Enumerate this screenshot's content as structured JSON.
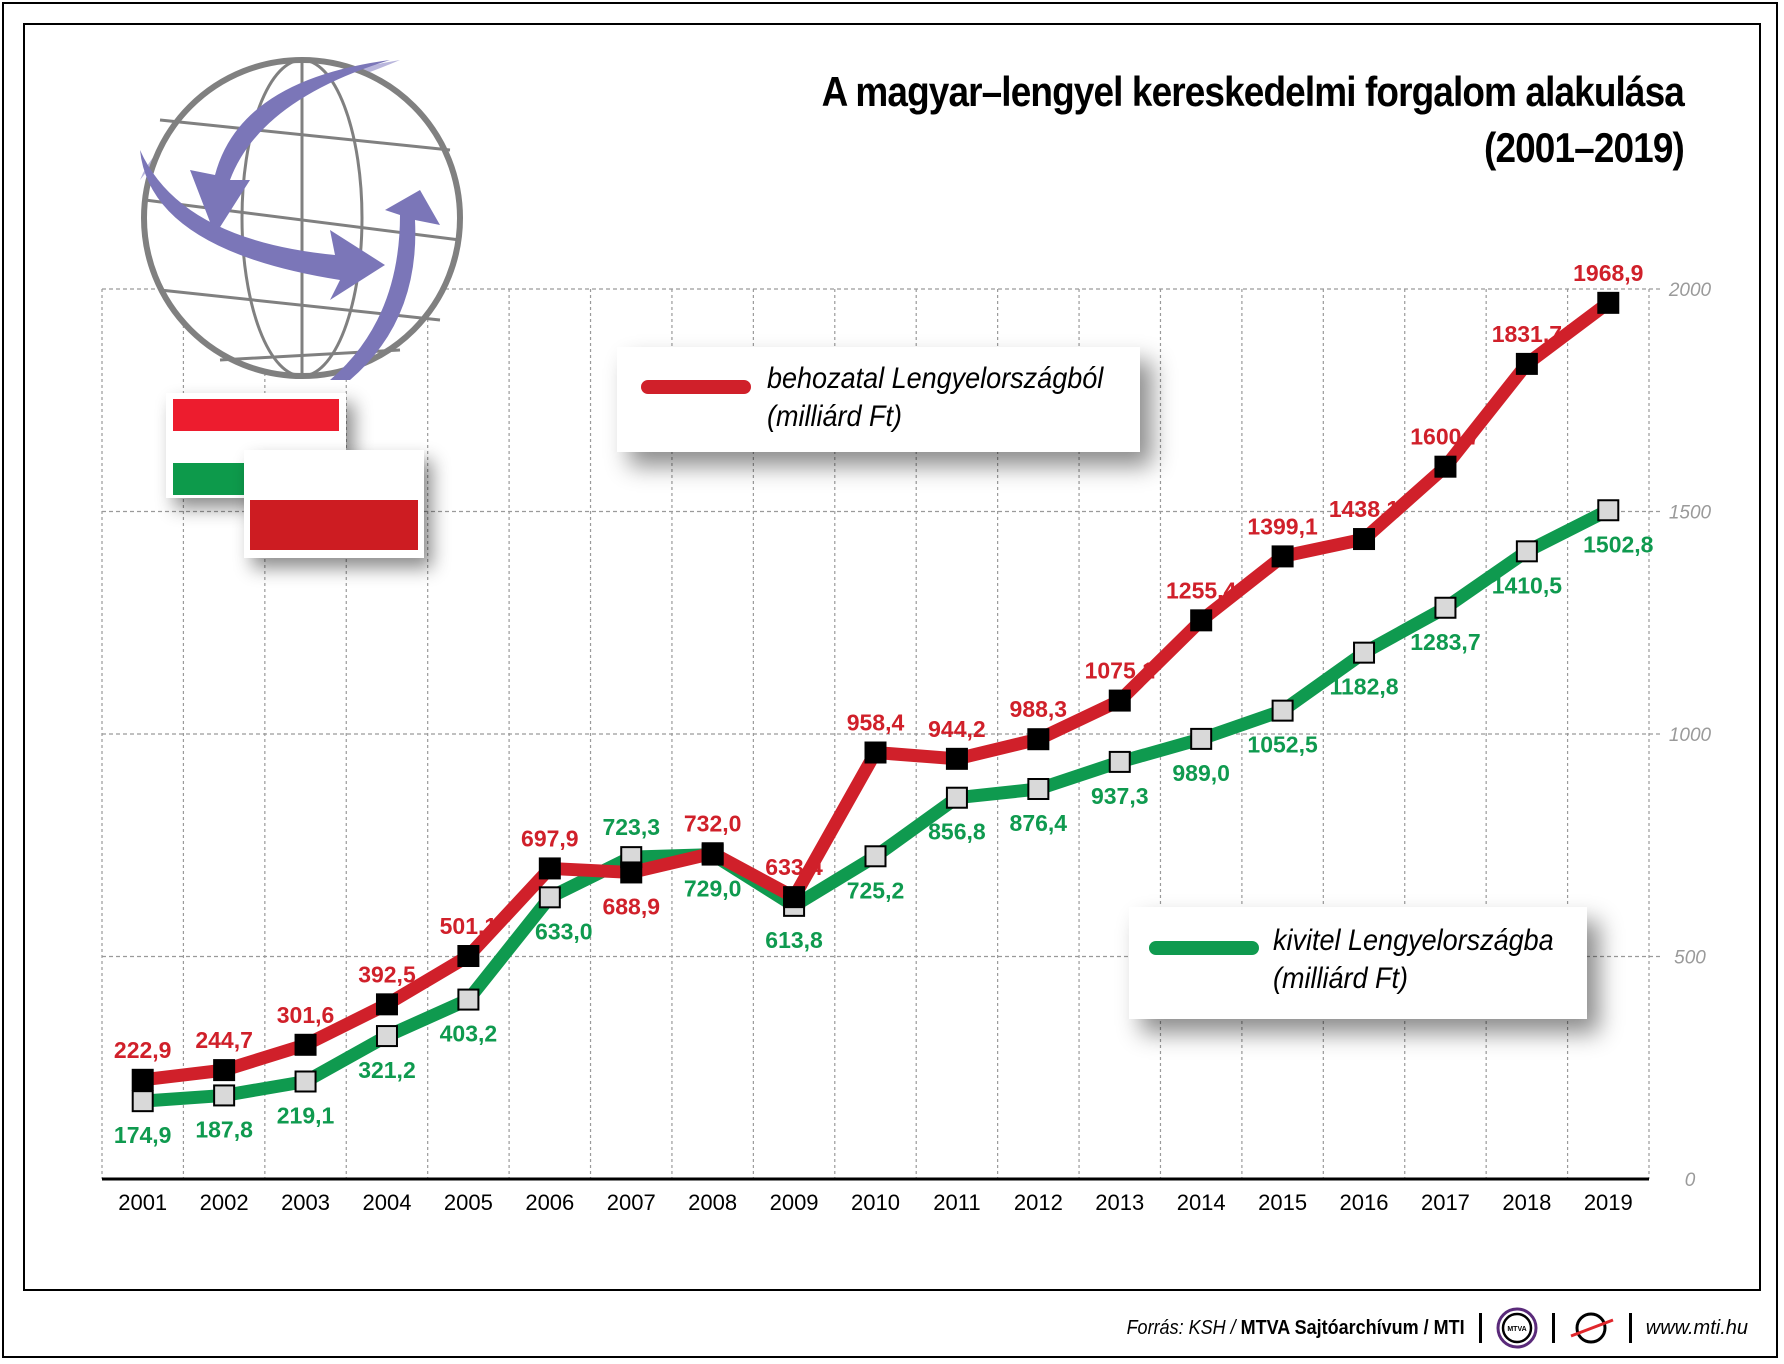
{
  "chart_data": {
    "type": "line",
    "title": "A magyar–lengyel kereskedelmi forgalom alakulása",
    "subtitle": "(2001–2019)",
    "categories": [
      "2001",
      "2002",
      "2003",
      "2004",
      "2005",
      "2006",
      "2007",
      "2008",
      "2009",
      "2010",
      "2011",
      "2012",
      "2013",
      "2014",
      "2015",
      "2016",
      "2017",
      "2018",
      "2019"
    ],
    "series": [
      {
        "name": "behozatal Lengyelországból",
        "unit": "(milliárd Ft)",
        "color": "#d0202a",
        "values": [
          222.9,
          244.7,
          301.6,
          392.5,
          501.1,
          697.9,
          688.9,
          732.0,
          633.4,
          958.4,
          944.2,
          988.3,
          1075.1,
          1255.4,
          1399.1,
          1438.1,
          1600.7,
          1831.7,
          1968.9
        ],
        "labels": [
          "222,9",
          "244,7",
          "301,6",
          "392,5",
          "501,1",
          "697,9",
          "688,9",
          "732,0",
          "633,4",
          "958,4",
          "944,2",
          "988,3",
          "1075,1",
          "1255,4",
          "1399,1",
          "1438,1",
          "1600,7",
          "1831,7",
          "1968,9"
        ]
      },
      {
        "name": "kivitel Lengyelországba",
        "unit": "(milliárd Ft)",
        "color": "#0f9a4f",
        "values": [
          174.9,
          187.8,
          219.1,
          321.2,
          403.2,
          633.0,
          723.3,
          729.0,
          613.8,
          725.2,
          856.8,
          876.4,
          937.3,
          989.0,
          1052.5,
          1182.8,
          1283.7,
          1410.5,
          1502.8
        ],
        "labels": [
          "174,9",
          "187,8",
          "219,1",
          "321,2",
          "403,2",
          "633,0",
          "723,3",
          "729,0",
          "613,8",
          "725,2",
          "856,8",
          "876,4",
          "937,3",
          "989,0",
          "1052,5",
          "1182,8",
          "1283,7",
          "1410,5",
          "1502,8"
        ]
      }
    ],
    "ylim": [
      0,
      2000
    ],
    "yticks": [
      "0",
      "500",
      "1000",
      "1500",
      "2000"
    ],
    "grid": true,
    "legend": "inside (top-center and bottom-right)"
  },
  "footer": {
    "source_prefix": "Forrás: KSH / ",
    "source_bold": "MTVA Sajtóarchívum / MTI",
    "mtva_logo": "MTVA",
    "url": "www.mti.hu"
  }
}
